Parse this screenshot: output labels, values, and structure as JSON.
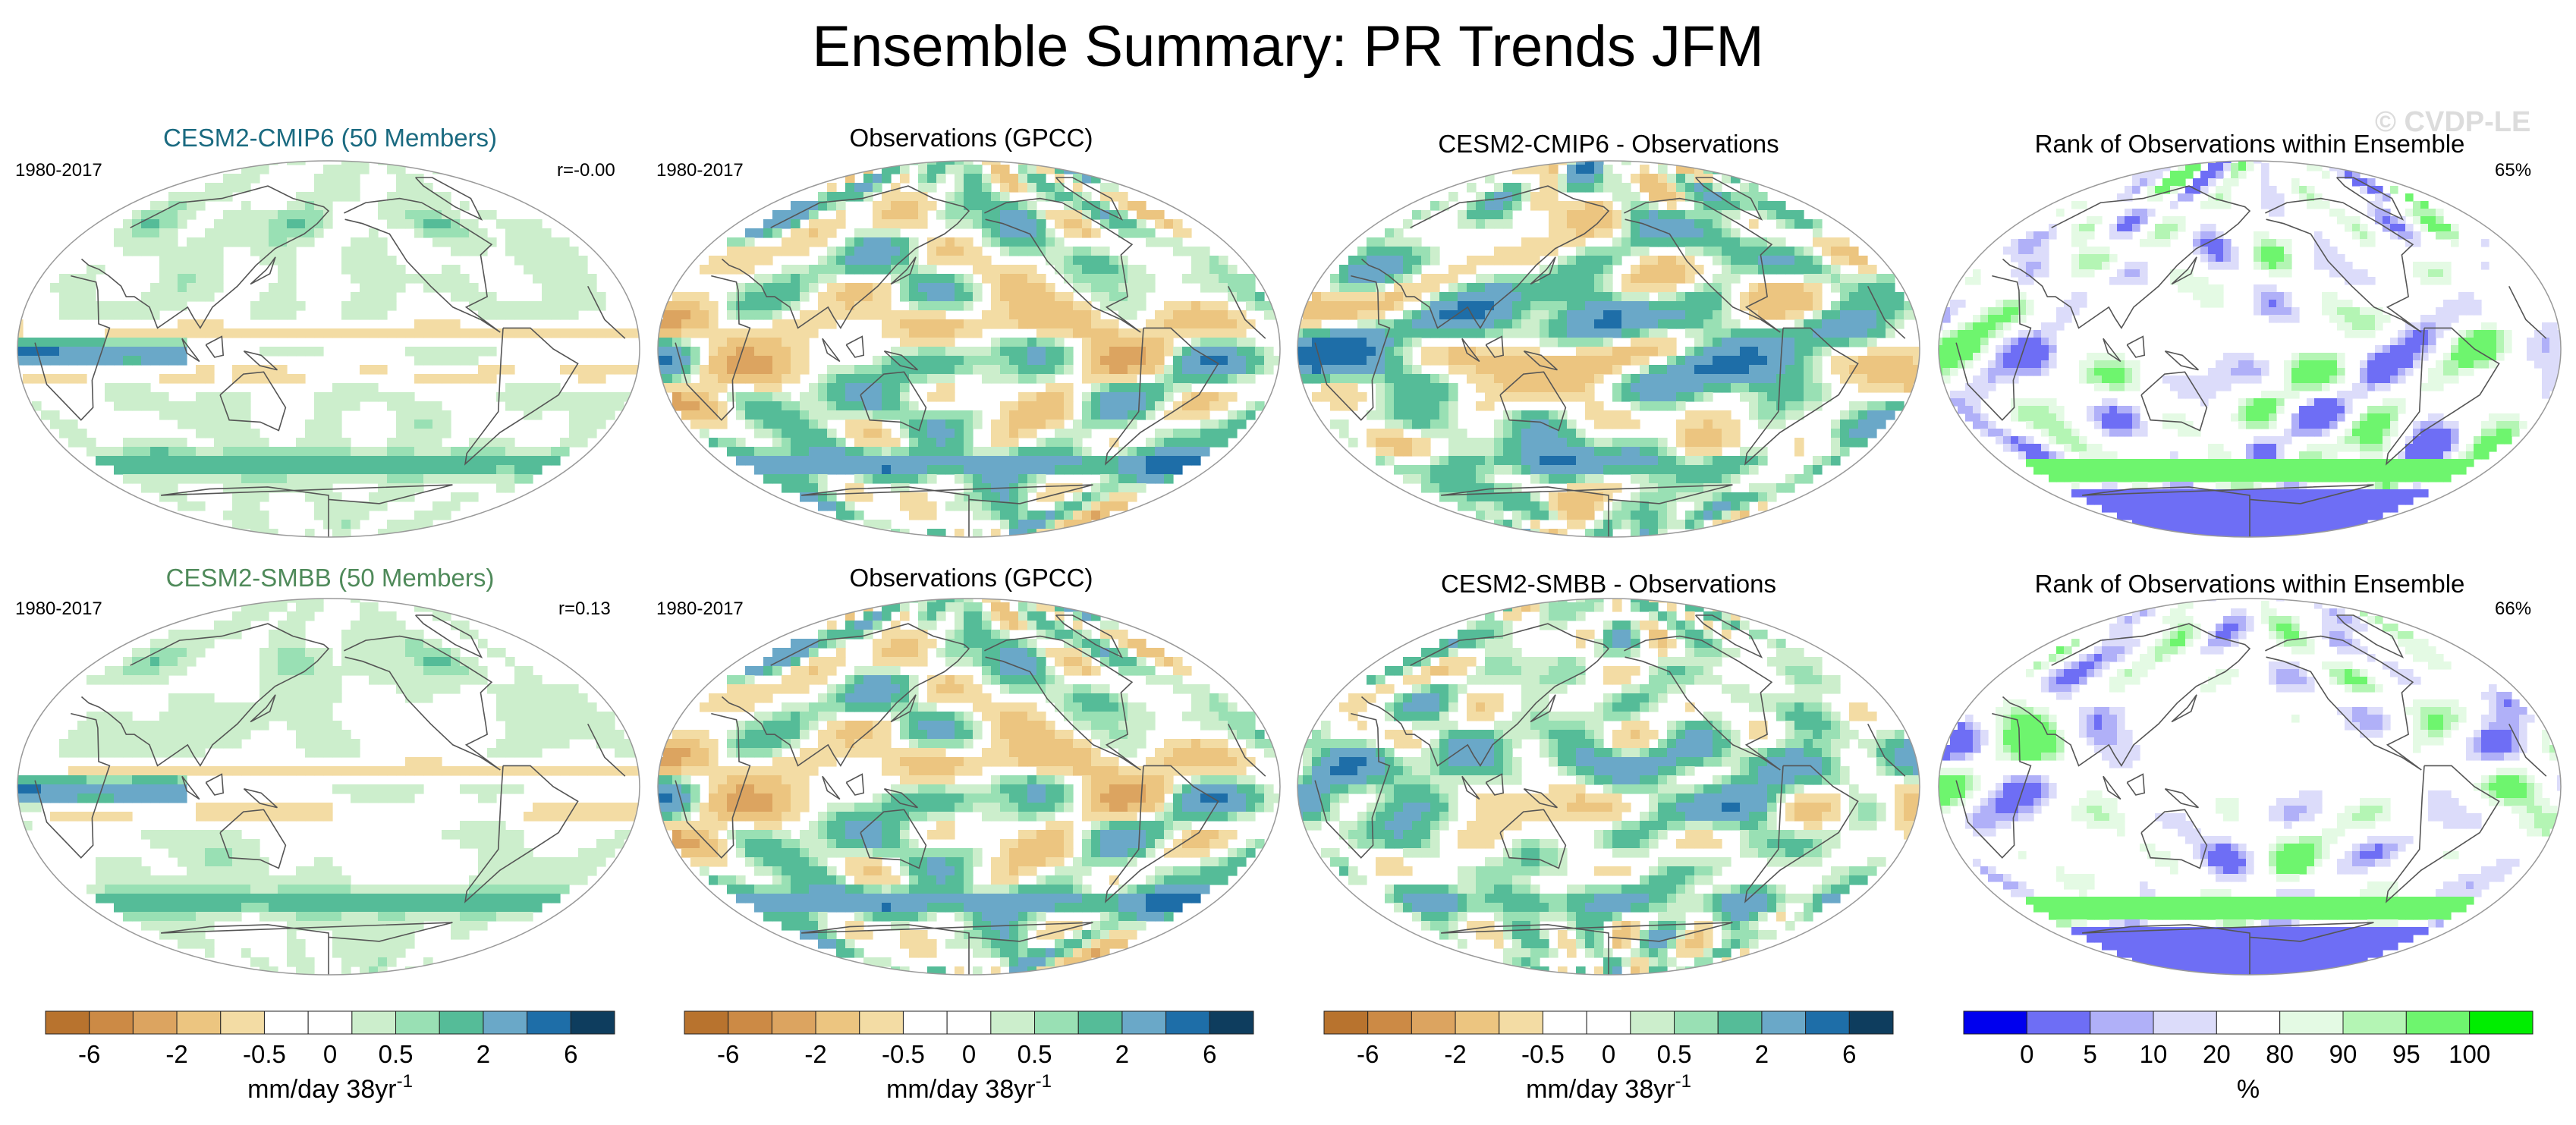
{
  "title": "Ensemble Summary: PR Trends JFM",
  "watermark": "© CVDP-LE",
  "colors": {
    "model1_title": "#1a6a80",
    "model2_title": "#4f8a5a",
    "coast": "#555555",
    "land_light": "#cccccc"
  },
  "rows": [
    {
      "panels": [
        {
          "title": "CESM2-CMIP6 (50 Members)",
          "left": "1980-2017",
          "right": "r=-0.00",
          "kind": "ensmean",
          "seed": 11
        },
        {
          "title": "Observations (GPCC)",
          "left": "1980-2017",
          "right": "",
          "kind": "obs",
          "seed": 23
        },
        {
          "title": "CESM2-CMIP6 - Observations",
          "left": "",
          "right": "",
          "kind": "diff",
          "seed": 37
        },
        {
          "title": "Rank of Observations within Ensemble",
          "left": "",
          "right": "65%",
          "kind": "rank",
          "seed": 51
        }
      ]
    },
    {
      "panels": [
        {
          "title": "CESM2-SMBB (50 Members)",
          "left": "1980-2017",
          "right": "r=0.13",
          "kind": "ensmean",
          "seed": 13
        },
        {
          "title": "Observations (GPCC)",
          "left": "1980-2017",
          "right": "",
          "kind": "obs",
          "seed": 23
        },
        {
          "title": "CESM2-SMBB - Observations",
          "left": "",
          "right": "",
          "kind": "diff",
          "seed": 41
        },
        {
          "title": "Rank of Observations within Ensemble",
          "left": "",
          "right": "66%",
          "kind": "rank",
          "seed": 57
        }
      ]
    }
  ],
  "colorbars": [
    {
      "ticks": [
        "-6",
        "-2",
        "-0.5",
        "0",
        "0.5",
        "2",
        "6"
      ],
      "label": "mm/day 38yr",
      "label_sup": "-1"
    },
    {
      "ticks": [
        "-6",
        "-2",
        "-0.5",
        "0",
        "0.5",
        "2",
        "6"
      ],
      "label": "mm/day 38yr",
      "label_sup": "-1"
    },
    {
      "ticks": [
        "-6",
        "-2",
        "-0.5",
        "0",
        "0.5",
        "2",
        "6"
      ],
      "label": "mm/day 38yr",
      "label_sup": "-1"
    },
    {
      "ticks": [
        "0",
        "5",
        "10",
        "20",
        "80",
        "90",
        "95",
        "100"
      ],
      "label": "%",
      "label_sup": ""
    }
  ],
  "chart_data": {
    "type": "heatmap",
    "title": "Ensemble Summary: PR Trends JFM",
    "projection": "robinson-like global map",
    "trend_colorbar": {
      "units": "mm/day 38yr-1",
      "tick_labels": [
        "-6",
        "-2",
        "-0.5",
        "0",
        "0.5",
        "2",
        "6"
      ],
      "colors": [
        "#b8732e",
        "#cc8a45",
        "#dca460",
        "#ecc580",
        "#f3dca4",
        "#ffffff",
        "#ffffff",
        "#cceecc",
        "#99e0b4",
        "#55bc98",
        "#6aa8c8",
        "#1e6ea8",
        "#0e3d5e"
      ]
    },
    "rank_colorbar": {
      "units": "%",
      "tick_labels": [
        "0",
        "5",
        "10",
        "20",
        "80",
        "90",
        "95",
        "100"
      ],
      "colors": [
        "#0000ee",
        "#6e6ef5",
        "#b0b0f8",
        "#dcdcfa",
        "#ffffff",
        "#e4fae4",
        "#b4f5b4",
        "#6ef56e",
        "#00ee00"
      ]
    },
    "panels": [
      {
        "row": 1,
        "col": 1,
        "title": "CESM2-CMIP6 (50 Members)",
        "period": "1980-2017",
        "pattern_corr": -0.0
      },
      {
        "row": 1,
        "col": 2,
        "title": "Observations (GPCC)",
        "period": "1980-2017"
      },
      {
        "row": 1,
        "col": 3,
        "title": "CESM2-CMIP6 - Observations"
      },
      {
        "row": 1,
        "col": 4,
        "title": "Rank of Observations within Ensemble",
        "area_pct_between_5_95": 65
      },
      {
        "row": 2,
        "col": 1,
        "title": "CESM2-SMBB (50 Members)",
        "period": "1980-2017",
        "pattern_corr": 0.13
      },
      {
        "row": 2,
        "col": 2,
        "title": "Observations (GPCC)",
        "period": "1980-2017"
      },
      {
        "row": 2,
        "col": 3,
        "title": "CESM2-SMBB - Observations"
      },
      {
        "row": 2,
        "col": 4,
        "title": "Rank of Observations within Ensemble",
        "area_pct_between_5_95": 66
      }
    ]
  }
}
